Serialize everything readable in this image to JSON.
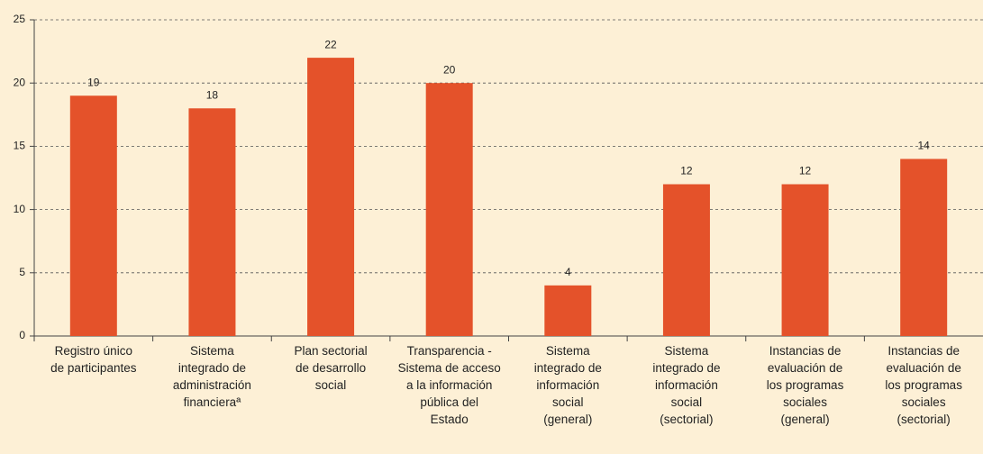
{
  "chart_data": {
    "type": "bar",
    "categories": [
      "Registro único\nde participantes",
      "Sistema\nintegrado de\nadministración\nfinancieraª",
      "Plan sectorial\nde desarrollo\nsocial",
      "Transparencia -\nSistema de acceso\na la información\npública del\nEstado",
      "Sistema\nintegrado de\ninformación\nsocial\n(general)",
      "Sistema\nintegrado de\ninformación\nsocial\n(sectorial)",
      "Instancias de\nevaluación de\nlos programas\nsociales\n(general)",
      "Instancias de\nevaluación de\nlos programas\nsociales\n(sectorial)"
    ],
    "values": [
      19,
      18,
      22,
      20,
      4,
      12,
      12,
      14
    ],
    "color": "#e4522a",
    "ylim": [
      0,
      25
    ],
    "yticks": [
      0,
      5,
      10,
      15,
      20,
      25
    ],
    "grid": true
  }
}
